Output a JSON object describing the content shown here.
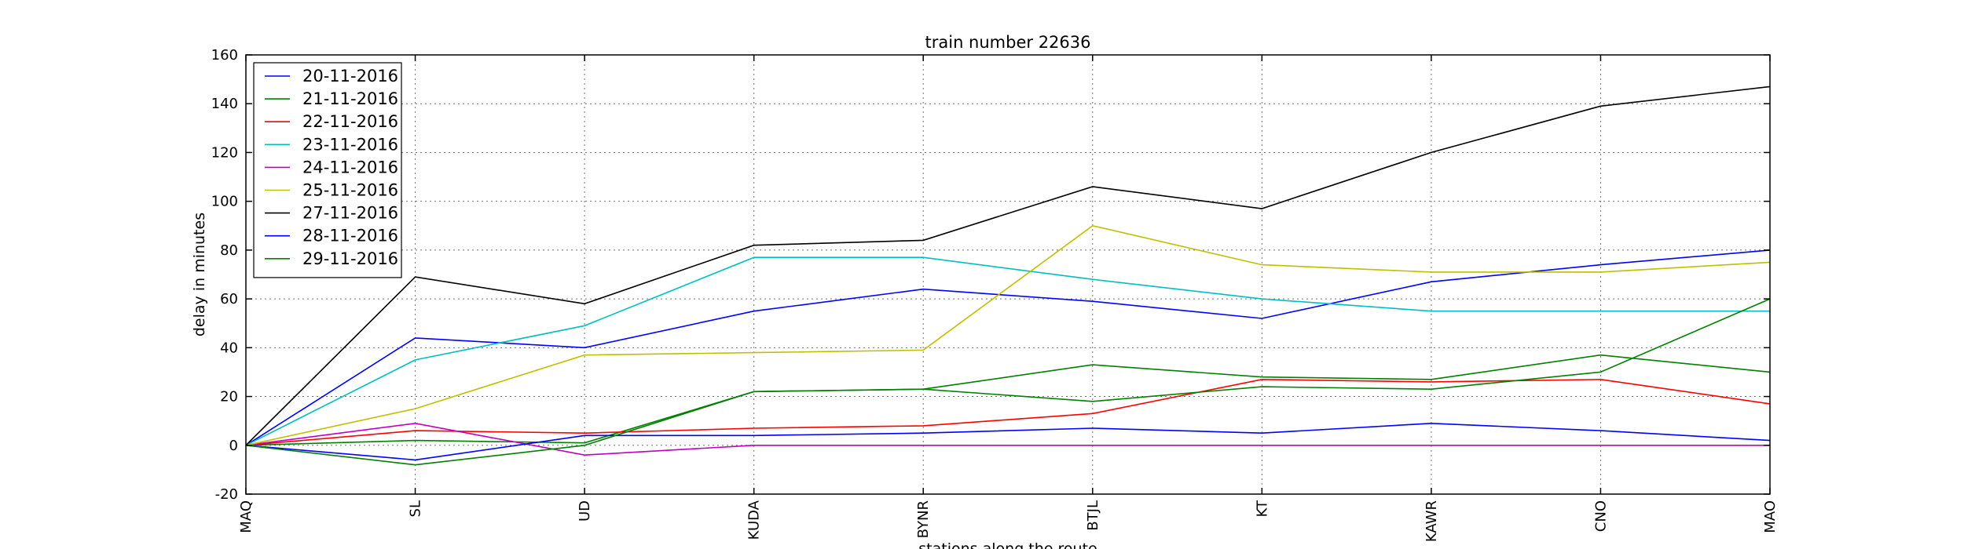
{
  "chart_data": {
    "type": "line",
    "title": "train number 22636",
    "xlabel": "stations along the route",
    "ylabel": "delay in minutes",
    "categories": [
      "MAQ",
      "SL",
      "UD",
      "KUDA",
      "BYNR",
      "BTJL",
      "KT",
      "KAWR",
      "CNO",
      "MAO"
    ],
    "ylim": [
      -20,
      160
    ],
    "yticks": [
      -20,
      0,
      20,
      40,
      60,
      80,
      100,
      120,
      140,
      160
    ],
    "grid": true,
    "legend_position": "top-left",
    "series": [
      {
        "name": "20-11-2016",
        "color": "#0000ff",
        "values": [
          0,
          44,
          40,
          55,
          64,
          59,
          52,
          67,
          74,
          80
        ]
      },
      {
        "name": "21-11-2016",
        "color": "#008000",
        "values": [
          0,
          2,
          1,
          22,
          23,
          33,
          28,
          27,
          37,
          30
        ]
      },
      {
        "name": "22-11-2016",
        "color": "#ff0000",
        "values": [
          0,
          6,
          5,
          7,
          8,
          13,
          27,
          26,
          27,
          17
        ]
      },
      {
        "name": "23-11-2016",
        "color": "#00bfbf",
        "values": [
          0,
          35,
          49,
          77,
          77,
          68,
          60,
          55,
          55,
          55
        ]
      },
      {
        "name": "24-11-2016",
        "color": "#bf00bf",
        "values": [
          0,
          9,
          -4,
          0,
          0,
          0,
          0,
          0,
          0,
          0
        ]
      },
      {
        "name": "25-11-2016",
        "color": "#bfbf00",
        "values": [
          0,
          15,
          37,
          38,
          39,
          90,
          74,
          71,
          71,
          75
        ]
      },
      {
        "name": "27-11-2016",
        "color": "#000000",
        "values": [
          0,
          69,
          58,
          82,
          84,
          106,
          97,
          120,
          139,
          147
        ]
      },
      {
        "name": "28-11-2016",
        "color": "#0000ff",
        "values": [
          0,
          -6,
          4,
          4,
          5,
          7,
          5,
          9,
          6,
          2
        ]
      },
      {
        "name": "29-11-2016",
        "color": "#008000",
        "values": [
          0,
          -8,
          0,
          22,
          23,
          18,
          24,
          23,
          30,
          60
        ]
      }
    ]
  }
}
